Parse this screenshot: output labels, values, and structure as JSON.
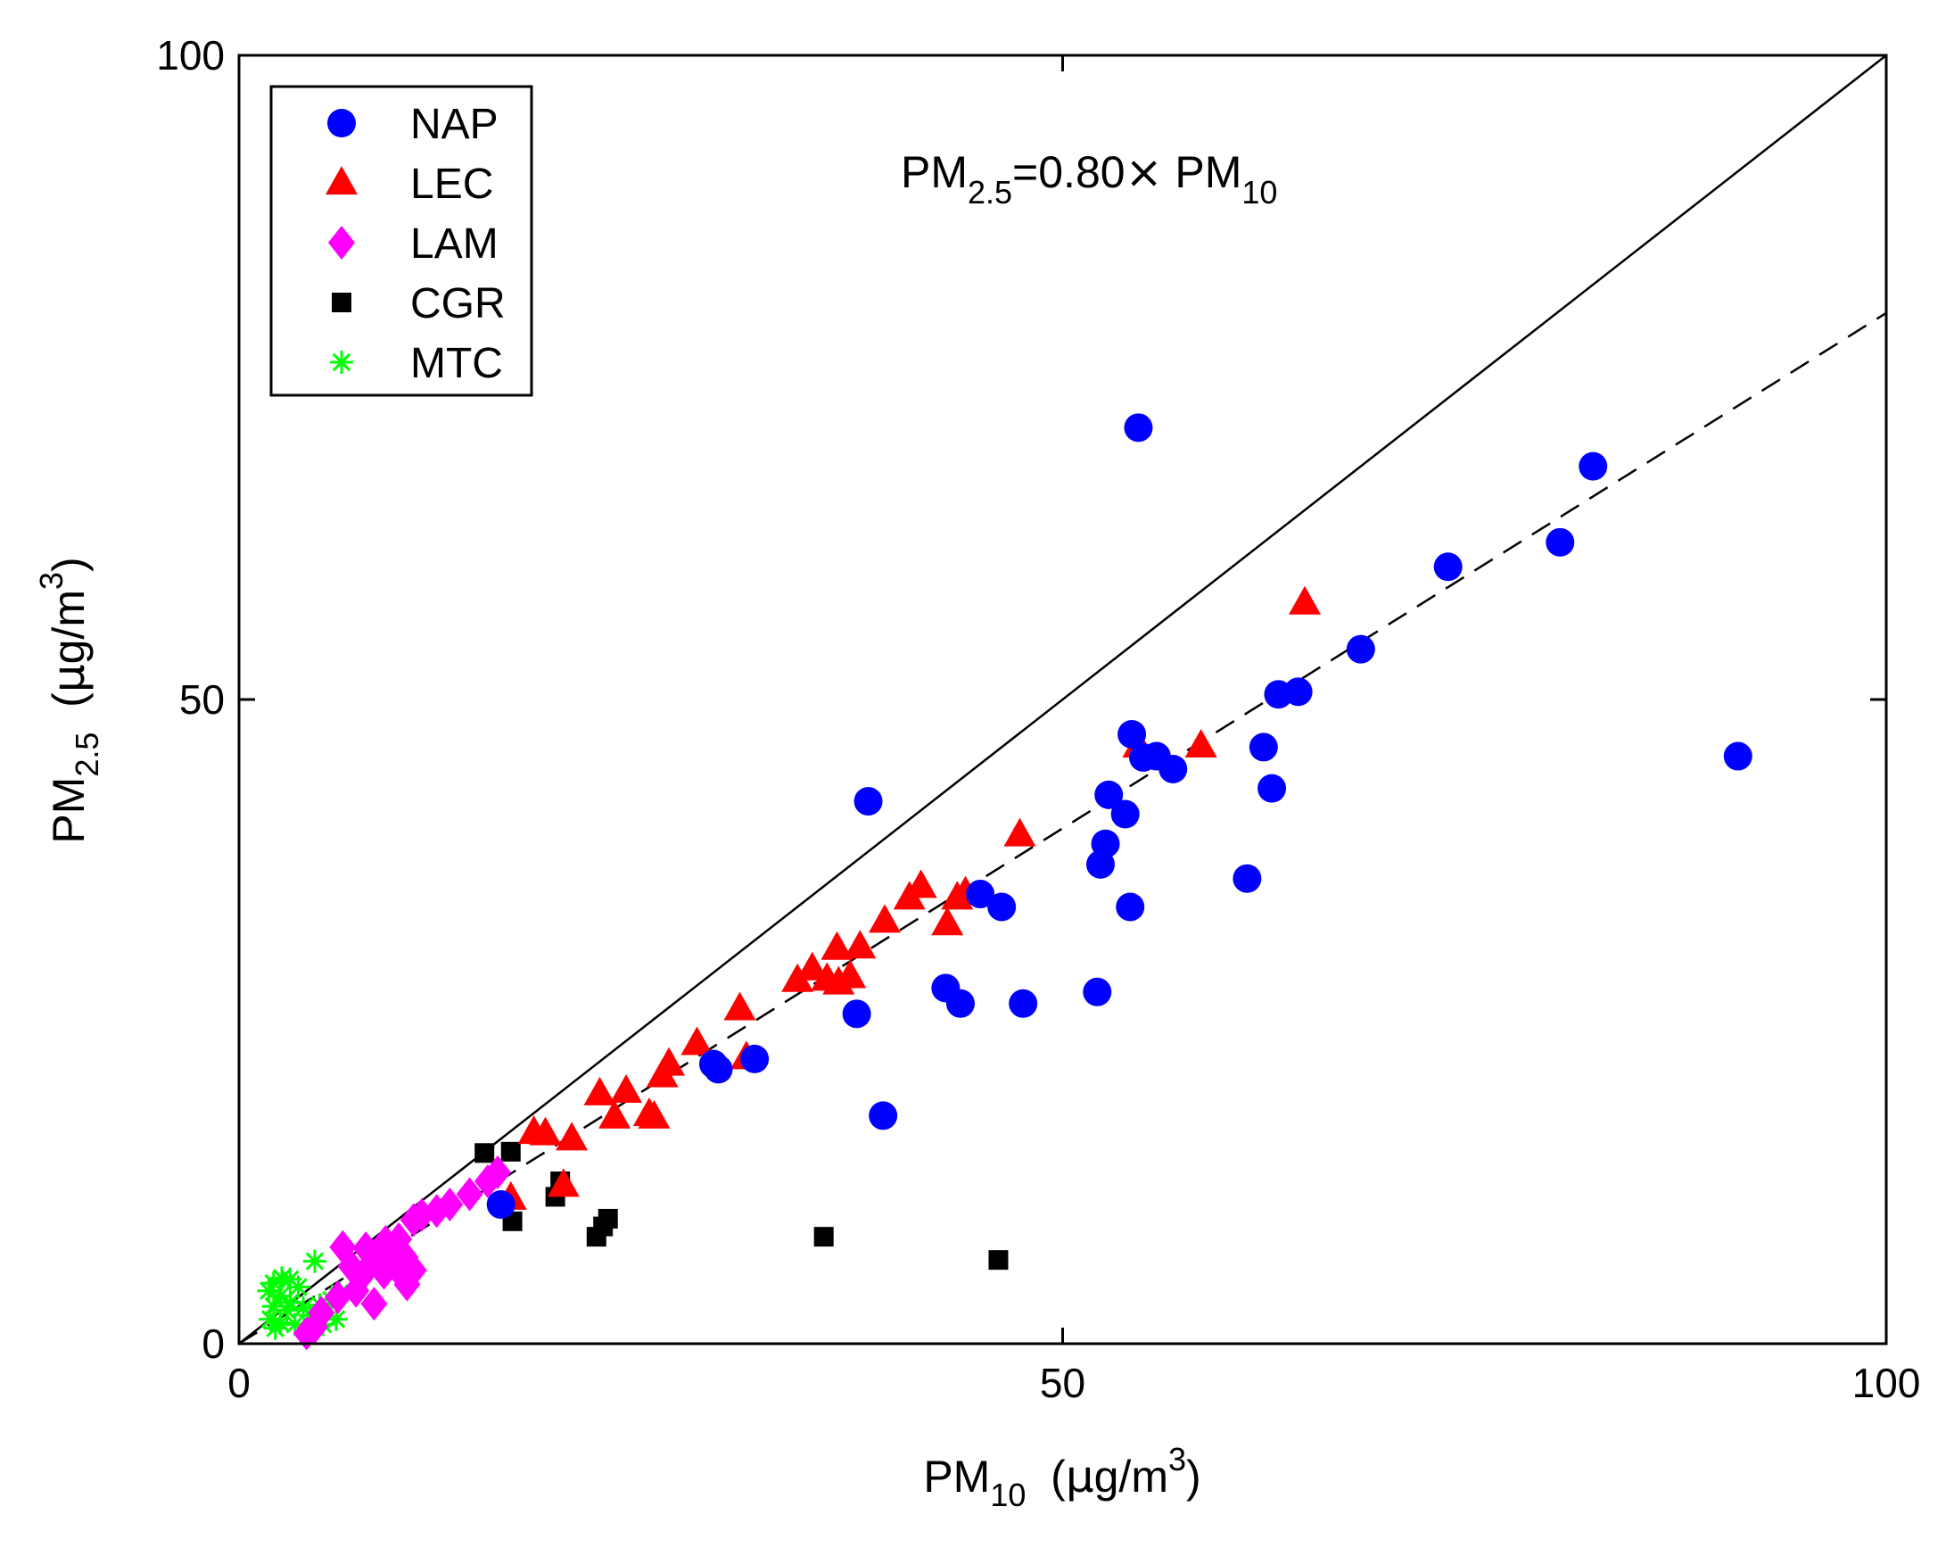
{
  "chart_data": {
    "type": "scatter",
    "xlabel": {
      "main": "PM",
      "sub": "10",
      "unit_open": "  (",
      "mu": "μ",
      "unit_mid": "g/m",
      "sup": "3",
      "unit_close": ")"
    },
    "ylabel": {
      "main": "PM",
      "sub": "2.5",
      "unit_open": "  (",
      "mu": "μ",
      "unit_mid": "g/m",
      "sup": "3",
      "unit_close": ")"
    },
    "xlim": [
      0,
      100
    ],
    "ylim": [
      0,
      100
    ],
    "xticks": [
      0,
      50,
      100
    ],
    "yticks": [
      0,
      50,
      100
    ],
    "grid": false,
    "legend_position": "top-left",
    "annotation": {
      "p1": "PM",
      "s1": "2.5",
      "p2": "=0.80",
      "times": "×",
      "p3": " PM",
      "s2": "10"
    },
    "lines": [
      {
        "name": "1:1 line",
        "style": "solid",
        "slope": 1.0,
        "color": "#000000"
      },
      {
        "name": "fit",
        "style": "dashed",
        "slope": 0.8,
        "color": "#000000"
      }
    ],
    "series": [
      {
        "name": "NAP",
        "marker": "circle",
        "color": "#0000ff",
        "points": [
          [
            54.6,
            71.1
          ],
          [
            82.2,
            68.1
          ],
          [
            80.2,
            62.2
          ],
          [
            73.4,
            60.3
          ],
          [
            68.1,
            53.9
          ],
          [
            63.1,
            50.4
          ],
          [
            64.3,
            50.6
          ],
          [
            54.2,
            47.3
          ],
          [
            54.9,
            45.5
          ],
          [
            55.7,
            45.6
          ],
          [
            62.2,
            46.3
          ],
          [
            56.7,
            44.6
          ],
          [
            62.7,
            43.1
          ],
          [
            52.8,
            42.6
          ],
          [
            53.8,
            41.1
          ],
          [
            91.0,
            45.6
          ],
          [
            38.2,
            42.1
          ],
          [
            52.6,
            38.8
          ],
          [
            52.3,
            37.2
          ],
          [
            61.2,
            36.1
          ],
          [
            45.0,
            34.9
          ],
          [
            46.3,
            33.9
          ],
          [
            54.1,
            33.9
          ],
          [
            42.9,
            27.6
          ],
          [
            43.8,
            26.4
          ],
          [
            47.6,
            26.4
          ],
          [
            52.1,
            27.3
          ],
          [
            37.5,
            25.6
          ],
          [
            31.3,
            22.1
          ],
          [
            29.1,
            21.3
          ],
          [
            28.8,
            21.7
          ],
          [
            39.1,
            17.7
          ],
          [
            15.9,
            10.8
          ]
        ]
      },
      {
        "name": "LEC",
        "marker": "triangle",
        "color": "#ff0000",
        "points": [
          [
            64.7,
            57.5
          ],
          [
            54.6,
            46.4
          ],
          [
            58.4,
            46.4
          ],
          [
            47.4,
            39.5
          ],
          [
            44.1,
            35.0
          ],
          [
            43.6,
            34.6
          ],
          [
            41.4,
            35.5
          ],
          [
            40.7,
            34.6
          ],
          [
            43.0,
            32.6
          ],
          [
            39.2,
            32.8
          ],
          [
            37.7,
            30.8
          ],
          [
            36.3,
            30.7
          ],
          [
            34.8,
            29.1
          ],
          [
            33.9,
            28.2
          ],
          [
            35.7,
            28.3
          ],
          [
            37.1,
            28.5
          ],
          [
            36.4,
            28.0
          ],
          [
            30.4,
            26.0
          ],
          [
            27.8,
            23.3
          ],
          [
            26.1,
            21.7
          ],
          [
            25.7,
            20.8
          ],
          [
            30.8,
            22.2
          ],
          [
            23.5,
            19.6
          ],
          [
            21.9,
            19.4
          ],
          [
            25.2,
            17.6
          ],
          [
            24.9,
            17.8
          ],
          [
            18.6,
            16.3
          ],
          [
            17.9,
            16.4
          ],
          [
            20.2,
            15.9
          ],
          [
            22.8,
            17.6
          ],
          [
            19.7,
            12.3
          ],
          [
            16.5,
            11.3
          ]
        ]
      },
      {
        "name": "LAM",
        "marker": "diamond",
        "color": "#ff00ff",
        "points": [
          [
            15.7,
            13.3
          ],
          [
            15.1,
            12.6
          ],
          [
            14.0,
            11.6
          ],
          [
            12.8,
            10.8
          ],
          [
            12.0,
            10.3
          ],
          [
            11.1,
            10.0
          ],
          [
            10.6,
            9.6
          ],
          [
            9.7,
            8.1
          ],
          [
            8.9,
            7.9
          ],
          [
            8.5,
            7.2
          ],
          [
            9.3,
            7.3
          ],
          [
            10.1,
            6.7
          ],
          [
            7.7,
            7.4
          ],
          [
            8.1,
            6.8
          ],
          [
            6.3,
            7.5
          ],
          [
            6.8,
            6.0
          ],
          [
            7.6,
            5.5
          ],
          [
            8.8,
            5.5
          ],
          [
            9.8,
            5.5
          ],
          [
            10.6,
            5.7
          ],
          [
            10.2,
            4.6
          ],
          [
            7.1,
            4.1
          ],
          [
            6.0,
            3.6
          ],
          [
            8.2,
            3.1
          ],
          [
            5.0,
            2.4
          ],
          [
            4.6,
            1.3
          ],
          [
            4.1,
            0.8
          ]
        ]
      },
      {
        "name": "CGR",
        "marker": "square",
        "color": "#000000",
        "points": [
          [
            14.9,
            14.8
          ],
          [
            16.5,
            14.9
          ],
          [
            19.5,
            12.6
          ],
          [
            19.2,
            11.4
          ],
          [
            16.6,
            9.5
          ],
          [
            22.4,
            9.7
          ],
          [
            22.1,
            9.1
          ],
          [
            21.7,
            8.3
          ],
          [
            35.5,
            8.3
          ],
          [
            46.1,
            6.5
          ]
        ]
      },
      {
        "name": "MTC",
        "marker": "asterisk",
        "color": "#00ff00",
        "points": [
          [
            4.6,
            6.4
          ],
          [
            2.1,
            4.7
          ],
          [
            2.6,
            5.1
          ],
          [
            3.1,
            5.0
          ],
          [
            3.6,
            4.4
          ],
          [
            1.8,
            4.1
          ],
          [
            2.5,
            3.7
          ],
          [
            3.1,
            3.2
          ],
          [
            2.1,
            2.9
          ],
          [
            2.9,
            2.6
          ],
          [
            3.9,
            2.8
          ],
          [
            4.9,
            3.0
          ],
          [
            5.6,
            3.4
          ],
          [
            6.1,
            3.9
          ],
          [
            1.9,
            1.9
          ],
          [
            2.5,
            1.6
          ],
          [
            3.4,
            1.5
          ],
          [
            4.6,
            1.9
          ],
          [
            5.1,
            1.5
          ],
          [
            5.9,
            1.9
          ],
          [
            4.3,
            2.2
          ],
          [
            2.2,
            1.2
          ]
        ]
      }
    ]
  }
}
